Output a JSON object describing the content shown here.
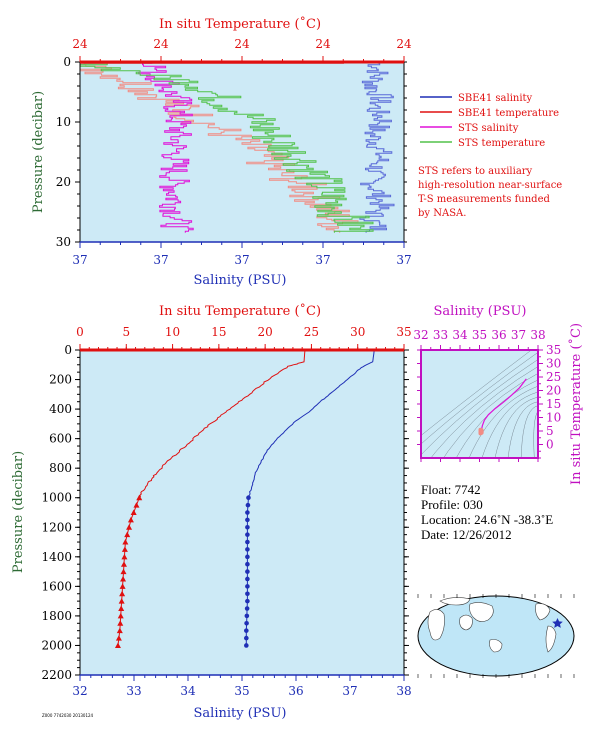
{
  "colors": {
    "salinity": "#1f2fb5",
    "temperature": "#e01010",
    "sts_salinity": "#e010d8",
    "sts_temperature": "#52c24a",
    "temperature_light": "#f28c84",
    "salinity_light": "#5a6ad8",
    "plot_bg": "#cdeaf6",
    "axis_dark_green": "#2e6b35",
    "axis_magenta": "#c010c0"
  },
  "chart_data": [
    {
      "type": "line",
      "title": "",
      "xlabel_top": "In situ Temperature (˚C)",
      "xlabel_bottom": "Salinity (PSU)",
      "ylabel": "Pressure (decibar)",
      "ylim": [
        0,
        30
      ],
      "y_ticks": [
        "0",
        "10",
        "20",
        "30"
      ],
      "temp_ticks": [
        "24",
        "24",
        "24",
        "24",
        "24"
      ],
      "sal_ticks": [
        "37",
        "37",
        "37",
        "37",
        "37"
      ],
      "temp_range_norm": [
        0,
        1
      ],
      "sal_range_norm": [
        0,
        1
      ],
      "legend_position": "right",
      "legend": [
        "SBE41 salinity",
        "SBE41 temperature",
        "STS salinity",
        "STS temperature"
      ],
      "note": [
        "STS refers to auxiliary",
        "high-resolution near-surface",
        "T-S measurements funded",
        "by NASA."
      ],
      "series": [
        {
          "name": "SBE41 salinity",
          "kind": "steps",
          "x": [
            0.92,
            0.9,
            0.93,
            0.91,
            0.94,
            0.9,
            0.92,
            0.93,
            0.91,
            0.9,
            0.92,
            0.93,
            0.9,
            0.92
          ],
          "y": [
            2,
            4,
            6,
            8,
            10,
            12,
            14,
            16,
            18,
            20,
            22,
            24,
            26,
            28
          ]
        },
        {
          "name": "SBE41 temperature",
          "kind": "steps",
          "x": [
            0.0,
            0.15,
            0.25,
            0.35,
            0.45,
            0.55,
            0.6,
            0.7,
            0.75,
            0.8
          ],
          "y": [
            0.5,
            3,
            6,
            9,
            12,
            15,
            18,
            21,
            24,
            27
          ]
        },
        {
          "name": "STS salinity",
          "kind": "steps",
          "x": [
            0.24,
            0.22,
            0.25,
            0.28,
            0.27,
            0.3,
            0.3,
            0.29,
            0.3
          ],
          "y": [
            1,
            2,
            3,
            4,
            5,
            6,
            10,
            20,
            28
          ]
        },
        {
          "name": "STS temperature",
          "kind": "steps",
          "x": [
            0.0,
            0.2,
            0.38,
            0.45,
            0.55,
            0.6,
            0.7,
            0.75,
            0.8,
            0.85
          ],
          "y": [
            0.3,
            2,
            4,
            7,
            10,
            13,
            17,
            21,
            25,
            28
          ]
        }
      ]
    },
    {
      "type": "line",
      "title": "",
      "xlabel_top": "In situ Temperature (˚C)",
      "xlabel_bottom": "Salinity (PSU)",
      "ylabel": "Pressure (decibar)",
      "ylim": [
        0,
        2200
      ],
      "y_ticks": [
        0,
        200,
        400,
        600,
        800,
        1000,
        1200,
        1400,
        1600,
        1800,
        2000,
        2200
      ],
      "temp_range": [
        0,
        35
      ],
      "temp_ticks": [
        0,
        5,
        10,
        15,
        20,
        25,
        30,
        35
      ],
      "sal_range": [
        32,
        38
      ],
      "sal_ticks": [
        32,
        33,
        34,
        35,
        36,
        37,
        38
      ],
      "series": [
        {
          "name": "Temperature",
          "axis": "temp",
          "x": [
            24.3,
            24.2,
            22.5,
            21.0,
            19.5,
            18.3,
            17.0,
            15.8,
            14.5,
            13.3,
            12.1,
            11.0,
            9.9,
            8.9,
            8.0,
            7.4,
            6.8,
            6.4,
            6.1,
            5.8,
            5.5,
            5.3,
            5.1,
            4.9,
            4.8,
            4.7,
            4.6,
            4.5,
            4.4,
            4.3,
            4.2,
            4.1
          ],
          "y": [
            0,
            80,
            110,
            170,
            240,
            300,
            360,
            420,
            480,
            540,
            610,
            670,
            730,
            790,
            850,
            900,
            950,
            1000,
            1050,
            1100,
            1150,
            1200,
            1250,
            1300,
            1400,
            1500,
            1600,
            1700,
            1800,
            1900,
            1950,
            2000
          ]
        },
        {
          "name": "Salinity",
          "axis": "sal",
          "x": [
            37.45,
            37.42,
            37.2,
            37.05,
            36.85,
            36.65,
            36.45,
            36.25,
            36.0,
            35.8,
            35.6,
            35.45,
            35.35,
            35.25,
            35.2,
            35.15,
            35.12,
            35.1,
            35.1,
            35.1,
            35.1,
            35.08,
            35.08
          ],
          "y": [
            0,
            80,
            120,
            170,
            230,
            290,
            350,
            420,
            480,
            550,
            620,
            690,
            760,
            830,
            900,
            960,
            1000,
            1100,
            1300,
            1500,
            1700,
            1900,
            2000
          ]
        }
      ],
      "temp_points_from": 1000,
      "sal_points_from": 1000
    },
    {
      "type": "scatter",
      "title": "",
      "xlabel_top": "Salinity (PSU)",
      "ylabel_right": "In situ Temperature (˚C)",
      "xlim": [
        32,
        38
      ],
      "x_ticks": [
        32,
        33,
        34,
        35,
        36,
        37,
        38
      ],
      "ylim": [
        -5,
        35
      ],
      "y_ticks": [
        0,
        5,
        10,
        15,
        20,
        25,
        30,
        35
      ],
      "series": [
        {
          "name": "T-S",
          "x": [
            35.05,
            35.08,
            35.1,
            35.15,
            35.25,
            35.45,
            35.8,
            36.25,
            36.65,
            37.05,
            37.4
          ],
          "y": [
            4.1,
            4.6,
            5.5,
            7.0,
            9.0,
            11.0,
            13.3,
            15.8,
            18.3,
            21.0,
            24.3
          ]
        }
      ]
    }
  ],
  "float_info": {
    "float": "Float:  7742",
    "profile": "Profile:  030",
    "location": "Location:  24.6˚N  -38.3˚E",
    "date": "Date:  12/26/2012"
  },
  "map": {
    "marker": "star",
    "marker_color": "#1f2fb5"
  },
  "footer_text": "Z000 7742030 20130124"
}
